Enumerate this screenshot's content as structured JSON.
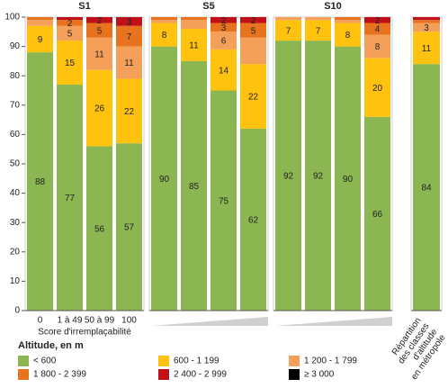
{
  "chart_data": [
    {
      "type": "stacked_bar",
      "title": "S1",
      "xlabel": "Score d'irremplaçabilité",
      "legend_title": "Altitude, en m",
      "categories": [
        "0",
        "1 à 49",
        "50 à 99",
        "100"
      ],
      "ylim": [
        0,
        100
      ],
      "yticks": [
        0,
        10,
        20,
        30,
        40,
        50,
        60,
        70,
        80,
        90,
        100
      ],
      "series": [
        {
          "name": "< 600",
          "color": "#8cb651",
          "values": [
            88,
            77,
            56,
            57
          ],
          "value_labels": [
            "88",
            "77",
            "56",
            "57"
          ]
        },
        {
          "name": "600 - 1 199",
          "color": "#ffc20e",
          "values": [
            9,
            15,
            26,
            22
          ],
          "value_labels": [
            "9",
            "15",
            "26",
            "22"
          ]
        },
        {
          "name": "1 200 - 1 799",
          "color": "#f5a05a",
          "values": [
            2,
            5,
            11,
            11
          ],
          "value_labels": [
            null,
            "5",
            "11",
            "11"
          ]
        },
        {
          "name": "1 800 - 2 399",
          "color": "#e8731e",
          "values": [
            1,
            2,
            5,
            7
          ],
          "value_labels": [
            null,
            "2",
            "5",
            "7"
          ]
        },
        {
          "name": "2 400 - 2 999",
          "color": "#c0111a",
          "values": [
            0,
            1,
            2,
            3
          ],
          "value_labels": [
            null,
            null,
            "2",
            "3"
          ]
        },
        {
          "name": "≥ 3 000",
          "color": "#000000",
          "values": [
            0,
            0,
            0,
            0
          ],
          "value_labels": [
            null,
            null,
            null,
            null
          ]
        }
      ]
    },
    {
      "type": "stacked_bar",
      "title": "S5",
      "categories": [
        null,
        null,
        null,
        null
      ],
      "ylim": [
        0,
        100
      ],
      "series": [
        {
          "name": "< 600",
          "color": "#8cb651",
          "values": [
            90,
            85,
            75,
            62
          ],
          "value_labels": [
            "90",
            "85",
            "75",
            "62"
          ]
        },
        {
          "name": "600 - 1 199",
          "color": "#ffc20e",
          "values": [
            8,
            11,
            14,
            22
          ],
          "value_labels": [
            "8",
            "11",
            "14",
            "22"
          ]
        },
        {
          "name": "1 200 - 1 799",
          "color": "#f5a05a",
          "values": [
            1,
            3,
            6,
            9
          ],
          "value_labels": [
            null,
            null,
            "6",
            null
          ]
        },
        {
          "name": "1 800 - 2 399",
          "color": "#e8731e",
          "values": [
            1,
            1,
            3,
            5
          ],
          "value_labels": [
            null,
            null,
            "3",
            "5"
          ]
        },
        {
          "name": "2 400 - 2 999",
          "color": "#c0111a",
          "values": [
            0,
            0,
            2,
            2
          ],
          "value_labels": [
            null,
            null,
            "2",
            "2"
          ]
        },
        {
          "name": "≥ 3 000",
          "color": "#000000",
          "values": [
            0,
            0,
            0,
            0
          ],
          "value_labels": [
            null,
            null,
            null,
            null
          ]
        }
      ]
    },
    {
      "type": "stacked_bar",
      "title": "S10",
      "categories": [
        null,
        null,
        null,
        null
      ],
      "ylim": [
        0,
        100
      ],
      "series": [
        {
          "name": "< 600",
          "color": "#8cb651",
          "values": [
            92,
            92,
            90,
            66
          ],
          "value_labels": [
            "92",
            "92",
            "90",
            "66"
          ]
        },
        {
          "name": "600 - 1 199",
          "color": "#ffc20e",
          "values": [
            7,
            7,
            8,
            20
          ],
          "value_labels": [
            "7",
            "7",
            "8",
            "20"
          ]
        },
        {
          "name": "1 200 - 1 799",
          "color": "#f5a05a",
          "values": [
            1,
            1,
            1,
            8
          ],
          "value_labels": [
            null,
            null,
            null,
            "8"
          ]
        },
        {
          "name": "1 800 - 2 399",
          "color": "#e8731e",
          "values": [
            0,
            0,
            1,
            4
          ],
          "value_labels": [
            null,
            null,
            null,
            "4"
          ]
        },
        {
          "name": "2 400 - 2 999",
          "color": "#c0111a",
          "values": [
            0,
            0,
            0,
            2
          ],
          "value_labels": [
            null,
            null,
            null,
            "2"
          ]
        },
        {
          "name": "≥ 3 000",
          "color": "#000000",
          "values": [
            0,
            0,
            0,
            0
          ],
          "value_labels": [
            null,
            null,
            null,
            null
          ]
        }
      ]
    },
    {
      "type": "stacked_bar",
      "xlabel": [
        "Répartition",
        "des classes",
        "d'altitude",
        "en métropole"
      ],
      "categories": [
        null
      ],
      "ylim": [
        0,
        100
      ],
      "series": [
        {
          "name": "< 600",
          "color": "#8cb651",
          "values": [
            84
          ],
          "value_labels": [
            "84"
          ]
        },
        {
          "name": "600 - 1 199",
          "color": "#ffc20e",
          "values": [
            11
          ],
          "value_labels": [
            "11"
          ]
        },
        {
          "name": "1 200 - 1 799",
          "color": "#f5a05a",
          "values": [
            3
          ],
          "value_labels": [
            "3"
          ]
        },
        {
          "name": "1 800 - 2 399",
          "color": "#e8731e",
          "values": [
            1
          ],
          "value_labels": [
            null
          ]
        },
        {
          "name": "2 400 - 2 999",
          "color": "#c0111a",
          "values": [
            1
          ],
          "value_labels": [
            null
          ]
        },
        {
          "name": "≥ 3 000",
          "color": "#000000",
          "values": [
            0
          ],
          "value_labels": [
            null
          ]
        }
      ]
    }
  ]
}
